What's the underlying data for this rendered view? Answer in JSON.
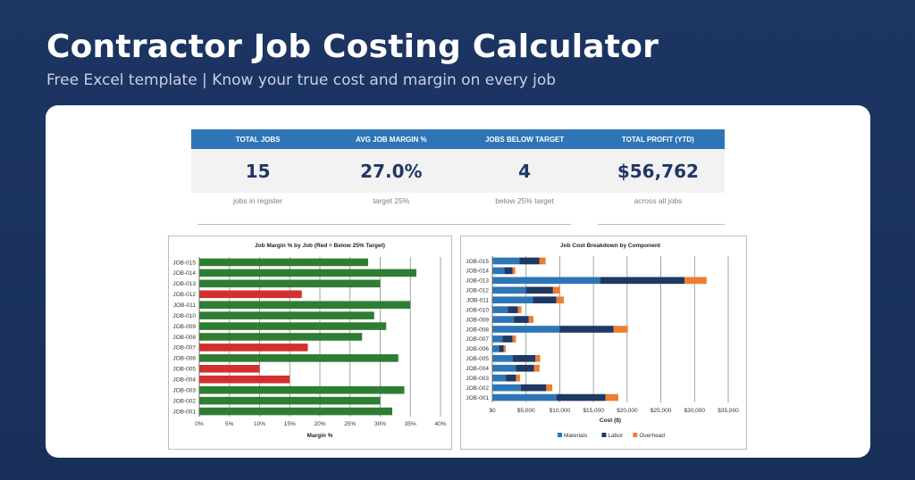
{
  "hero": {
    "title": "Contractor Job Costing Calculator",
    "subtitle": "Free Excel template  |  Know your true cost and margin on every job"
  },
  "kpis": [
    {
      "label": "TOTAL JOBS",
      "value": "15",
      "note": "jobs in register"
    },
    {
      "label": "AVG JOB MARGIN %",
      "value": "27.0%",
      "note": "target 25%"
    },
    {
      "label": "JOBS BELOW TARGET",
      "value": "4",
      "note": "below 25% target"
    },
    {
      "label": "TOTAL PROFIT (YTD)",
      "value": "$56,762",
      "note": "across all jobs"
    }
  ],
  "colors": {
    "header_blue": "#2e75b6",
    "kpi_value": "#1f3864",
    "above_target": "#2e7d32",
    "below_target": "#d32f2f",
    "materials": "#2e75b6",
    "labor": "#1f3864",
    "overhead": "#ed7d31"
  },
  "chart_data": [
    {
      "type": "bar",
      "orientation": "horizontal",
      "title": "Job Margin % by Job (Red = Below 25% Target)",
      "xlabel": "Margin %",
      "ylabel": "",
      "xlim": [
        0,
        40
      ],
      "x_ticks": [
        "0%",
        "5%",
        "10%",
        "15%",
        "20%",
        "25%",
        "30%",
        "35%",
        "40%"
      ],
      "grid": true,
      "categories": [
        "JOB-015",
        "JOB-014",
        "JOB-013",
        "JOB-012",
        "JOB-011",
        "JOB-010",
        "JOB-009",
        "JOB-008",
        "JOB-007",
        "JOB-006",
        "JOB-005",
        "JOB-004",
        "JOB-003",
        "JOB-002",
        "JOB-001"
      ],
      "values": [
        28,
        36,
        30,
        17,
        35,
        29,
        31,
        27,
        18,
        33,
        10,
        15,
        34,
        30,
        32
      ],
      "below_target": [
        false,
        false,
        false,
        true,
        false,
        false,
        false,
        false,
        true,
        false,
        true,
        true,
        false,
        false,
        false
      ]
    },
    {
      "type": "bar",
      "orientation": "horizontal",
      "stacked": true,
      "title": "Job Cost Breakdown by Component",
      "xlabel": "Cost ($)",
      "ylabel": "",
      "xlim": [
        0,
        35000
      ],
      "x_ticks": [
        "$0",
        "$5,000",
        "$10,000",
        "$15,000",
        "$20,000",
        "$25,000",
        "$30,000",
        "$35,000"
      ],
      "grid": true,
      "legend": "bottom",
      "categories": [
        "JOB-015",
        "JOB-014",
        "JOB-013",
        "JOB-012",
        "JOB-011",
        "JOB-010",
        "JOB-009",
        "JOB-008",
        "JOB-007",
        "JOB-006",
        "JOB-005",
        "JOB-004",
        "JOB-003",
        "JOB-002",
        "JOB-001"
      ],
      "series": [
        {
          "name": "Materials",
          "values": [
            4000,
            1800,
            16000,
            5000,
            6000,
            2300,
            3200,
            10000,
            1500,
            1000,
            3000,
            3500,
            2000,
            4200,
            9500
          ]
        },
        {
          "name": "Labor",
          "values": [
            3000,
            1200,
            12500,
            4000,
            3500,
            1500,
            2200,
            8000,
            1500,
            700,
            3400,
            2700,
            1500,
            3800,
            7300
          ]
        },
        {
          "name": "Overhead",
          "values": [
            900,
            400,
            3300,
            1000,
            1100,
            500,
            700,
            2100,
            500,
            300,
            700,
            800,
            600,
            900,
            1900
          ]
        }
      ]
    }
  ]
}
